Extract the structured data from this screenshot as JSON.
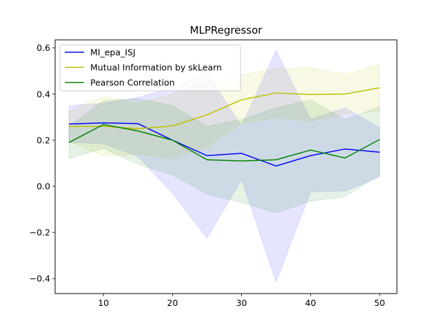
{
  "chart_data": {
    "type": "line",
    "title": "MLPRegressor",
    "xlabel": "",
    "ylabel": "",
    "x": [
      5,
      10,
      15,
      20,
      25,
      30,
      35,
      40,
      45,
      50
    ],
    "xlim": [
      3,
      52.5
    ],
    "ylim": [
      -0.465,
      0.635
    ],
    "xticks": [
      10,
      20,
      30,
      40,
      50
    ],
    "yticks": [
      -0.4,
      -0.2,
      0.0,
      0.2,
      0.4,
      0.6
    ],
    "ytick_labels": [
      "−0.4",
      "−0.2",
      "0.0",
      "0.2",
      "0.4",
      "0.6"
    ],
    "grid": false,
    "legend_position": "top-left",
    "series": [
      {
        "name": "MI_epa_ISJ",
        "color": "#0000ff",
        "values": [
          0.27,
          0.275,
          0.272,
          0.2,
          0.133,
          0.143,
          0.088,
          0.133,
          0.162,
          0.148
        ],
        "lower": [
          0.19,
          0.185,
          0.13,
          -0.03,
          -0.225,
          0.03,
          -0.415,
          -0.025,
          -0.02,
          0.04
        ],
        "upper": [
          0.35,
          0.36,
          0.385,
          0.43,
          0.49,
          0.26,
          0.59,
          0.29,
          0.34,
          0.255
        ]
      },
      {
        "name": "Mutual Information by skLearn",
        "color": "#bfbf00",
        "values": [
          0.26,
          0.26,
          0.25,
          0.262,
          0.31,
          0.375,
          0.405,
          0.398,
          0.4,
          0.427
        ],
        "lower": [
          0.195,
          0.13,
          0.14,
          0.12,
          0.17,
          0.27,
          0.3,
          0.28,
          0.315,
          0.325
        ],
        "upper": [
          0.325,
          0.39,
          0.36,
          0.4,
          0.45,
          0.485,
          0.51,
          0.515,
          0.485,
          0.53
        ]
      },
      {
        "name": "Pearson Correlation",
        "color": "#008000",
        "values": [
          0.19,
          0.268,
          0.24,
          0.2,
          0.115,
          0.11,
          0.115,
          0.157,
          0.123,
          0.203
        ],
        "lower": [
          0.12,
          0.165,
          0.095,
          0.05,
          -0.035,
          -0.07,
          -0.115,
          -0.065,
          -0.045,
          0.05
        ],
        "upper": [
          0.26,
          0.37,
          0.38,
          0.35,
          0.26,
          0.29,
          0.34,
          0.375,
          0.29,
          0.345
        ]
      }
    ]
  }
}
